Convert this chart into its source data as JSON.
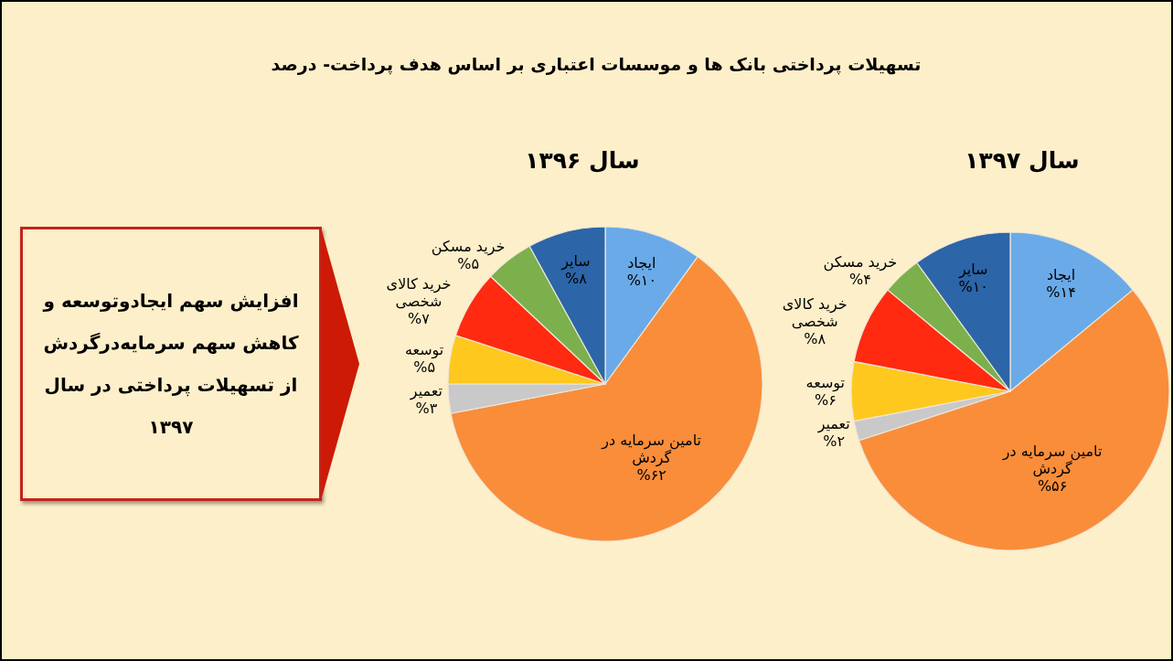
{
  "chart_data": [
    {
      "type": "other",
      "title": "تسهیلات پرداختی بانک ها و موسسات اعتباری بر اساس هدف پرداخت- درصد",
      "annotations": [
        "افزایش سهم ایجادوتوسعه و کاهش سهم سرمایه‌درگردش از تسهیلات پرداختی در سال ۱۳۹۷"
      ]
    },
    {
      "type": "pie",
      "title": "سال ۱۳۹۶",
      "categories": [
        "ایجاد",
        "تامین سرمایه در گردش",
        "تعمیر",
        "توسعه",
        "خرید کالای شخصی",
        "خرید مسکن",
        "سایر"
      ],
      "values": [
        10,
        62,
        3,
        5,
        7,
        5,
        8
      ],
      "colors": [
        "#6aaae8",
        "#f98d3a",
        "#c9c9c9",
        "#ffc81e",
        "#ff2a10",
        "#7bb04c",
        "#2c65a8"
      ],
      "value_labels": [
        "%۱۰",
        "%۶۲",
        "%۳",
        "%۵",
        "%۷",
        "%۵",
        "%۸"
      ]
    },
    {
      "type": "pie",
      "title": "سال ۱۳۹۷",
      "categories": [
        "ایجاد",
        "تامین سرمایه در گردش",
        "تعمیر",
        "توسعه",
        "خرید کالای شخصی",
        "خرید مسکن",
        "سایر"
      ],
      "values": [
        14,
        56,
        2,
        6,
        8,
        4,
        10
      ],
      "colors": [
        "#6aaae8",
        "#f98d3a",
        "#c9c9c9",
        "#ffc81e",
        "#ff2a10",
        "#7bb04c",
        "#2c65a8"
      ],
      "value_labels": [
        "%۱۴",
        "%۵۶",
        "%۲",
        "%۶",
        "%۸",
        "%۴",
        "%۱۰"
      ]
    }
  ]
}
